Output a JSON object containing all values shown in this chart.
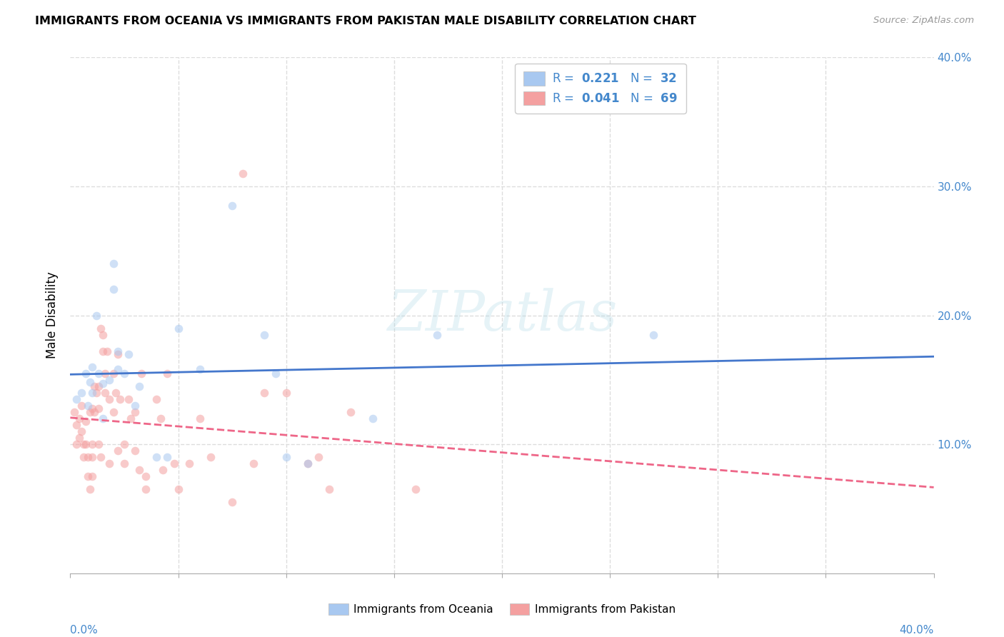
{
  "title": "IMMIGRANTS FROM OCEANIA VS IMMIGRANTS FROM PAKISTAN MALE DISABILITY CORRELATION CHART",
  "source": "Source: ZipAtlas.com",
  "ylabel": "Male Disability",
  "xlim": [
    0.0,
    0.4
  ],
  "ylim": [
    0.0,
    0.4
  ],
  "ytick_values": [
    0.1,
    0.2,
    0.3,
    0.4
  ],
  "xtick_values": [
    0.0,
    0.05,
    0.1,
    0.15,
    0.2,
    0.25,
    0.3,
    0.35,
    0.4
  ],
  "oceania_color": "#A8C8F0",
  "pakistan_color": "#F4A0A0",
  "oceania_line_color": "#4477CC",
  "pakistan_line_color": "#EE6688",
  "legend_R_oceania": "0.221",
  "legend_N_oceania": "32",
  "legend_R_pakistan": "0.041",
  "legend_N_pakistan": "69",
  "oceania_x": [
    0.003,
    0.005,
    0.007,
    0.008,
    0.009,
    0.01,
    0.01,
    0.012,
    0.013,
    0.015,
    0.015,
    0.018,
    0.02,
    0.02,
    0.022,
    0.022,
    0.025,
    0.027,
    0.03,
    0.032,
    0.04,
    0.045,
    0.05,
    0.06,
    0.075,
    0.09,
    0.095,
    0.1,
    0.11,
    0.14,
    0.17,
    0.27
  ],
  "oceania_y": [
    0.135,
    0.14,
    0.155,
    0.13,
    0.148,
    0.16,
    0.14,
    0.2,
    0.155,
    0.12,
    0.147,
    0.15,
    0.22,
    0.24,
    0.158,
    0.172,
    0.155,
    0.17,
    0.13,
    0.145,
    0.09,
    0.09,
    0.19,
    0.158,
    0.285,
    0.185,
    0.155,
    0.09,
    0.085,
    0.12,
    0.185,
    0.185
  ],
  "pakistan_x": [
    0.002,
    0.003,
    0.003,
    0.004,
    0.004,
    0.005,
    0.005,
    0.006,
    0.006,
    0.007,
    0.007,
    0.008,
    0.008,
    0.009,
    0.009,
    0.01,
    0.01,
    0.01,
    0.01,
    0.011,
    0.011,
    0.012,
    0.013,
    0.013,
    0.013,
    0.014,
    0.014,
    0.015,
    0.015,
    0.016,
    0.016,
    0.017,
    0.018,
    0.018,
    0.02,
    0.02,
    0.021,
    0.022,
    0.022,
    0.023,
    0.025,
    0.025,
    0.027,
    0.028,
    0.03,
    0.03,
    0.032,
    0.033,
    0.035,
    0.035,
    0.04,
    0.042,
    0.043,
    0.045,
    0.048,
    0.05,
    0.055,
    0.06,
    0.065,
    0.075,
    0.08,
    0.085,
    0.09,
    0.1,
    0.11,
    0.115,
    0.12,
    0.13,
    0.16
  ],
  "pakistan_y": [
    0.125,
    0.115,
    0.1,
    0.12,
    0.105,
    0.13,
    0.11,
    0.1,
    0.09,
    0.118,
    0.1,
    0.09,
    0.075,
    0.065,
    0.125,
    0.128,
    0.1,
    0.09,
    0.075,
    0.145,
    0.125,
    0.14,
    0.1,
    0.145,
    0.128,
    0.09,
    0.19,
    0.185,
    0.172,
    0.155,
    0.14,
    0.172,
    0.085,
    0.135,
    0.155,
    0.125,
    0.14,
    0.095,
    0.17,
    0.135,
    0.1,
    0.085,
    0.135,
    0.12,
    0.125,
    0.095,
    0.08,
    0.155,
    0.075,
    0.065,
    0.135,
    0.12,
    0.08,
    0.155,
    0.085,
    0.065,
    0.085,
    0.12,
    0.09,
    0.055,
    0.31,
    0.085,
    0.14,
    0.14,
    0.085,
    0.09,
    0.065,
    0.125,
    0.065
  ],
  "background_color": "#ffffff",
  "grid_color": "#dddddd",
  "axis_label_color": "#4488cc",
  "watermark_text": "ZIPatlas",
  "marker_size": 70,
  "marker_alpha": 0.55,
  "line_width": 2.0
}
